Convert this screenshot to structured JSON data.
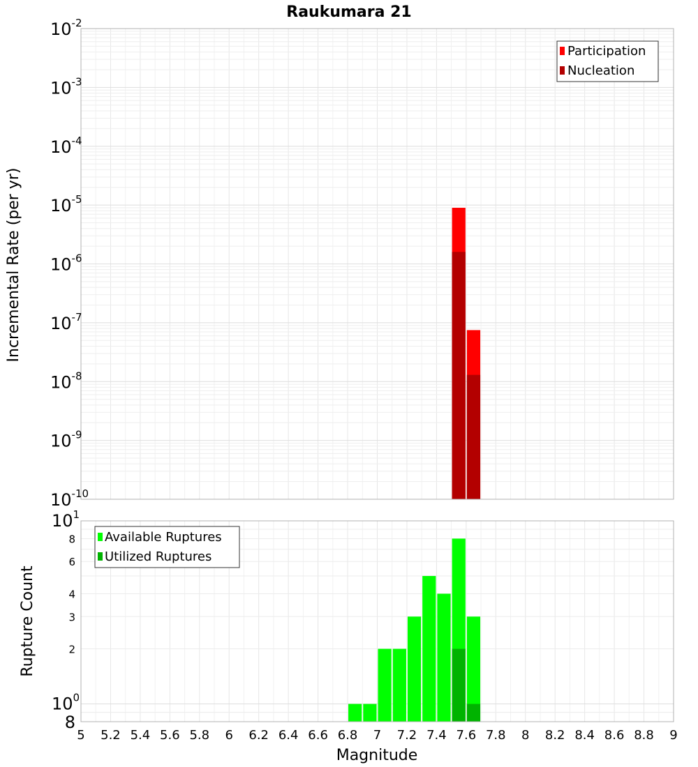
{
  "chart_data": [
    {
      "type": "bar",
      "title": "Raukumara 21",
      "ylabel": "Incremental Rate (per yr)",
      "xlim": [
        5,
        9
      ],
      "ylim": [
        1e-10,
        0.01
      ],
      "y_scale": "log",
      "bin_width": 0.1,
      "grid": true,
      "legend_position": "top-right",
      "series": [
        {
          "name": "Participation",
          "color": "#ff0000",
          "x": [
            7.55,
            7.65
          ],
          "values": [
            9e-06,
            7.5e-08
          ]
        },
        {
          "name": "Nucleation",
          "color": "#b30000",
          "x": [
            7.55,
            7.65
          ],
          "values": [
            1.6e-06,
            1.3e-08
          ]
        }
      ],
      "y_ticks": [
        {
          "value": 0.01,
          "base": "10",
          "exp": "-2"
        },
        {
          "value": 0.001,
          "base": "10",
          "exp": "-3"
        },
        {
          "value": 0.0001,
          "base": "10",
          "exp": "-4"
        },
        {
          "value": 1e-05,
          "base": "10",
          "exp": "-5"
        },
        {
          "value": 1e-06,
          "base": "10",
          "exp": "-6"
        },
        {
          "value": 1e-07,
          "base": "10",
          "exp": "-7"
        },
        {
          "value": 1e-08,
          "base": "10",
          "exp": "-8"
        },
        {
          "value": 1e-09,
          "base": "10",
          "exp": "-9"
        },
        {
          "value": 1e-10,
          "base": "10",
          "exp": "-10"
        }
      ]
    },
    {
      "type": "bar",
      "xlabel": "Magnitude",
      "ylabel": "Rupture Count",
      "xlim": [
        5,
        9
      ],
      "ylim": [
        0.8,
        10
      ],
      "y_scale": "log",
      "bin_width": 0.1,
      "grid": true,
      "legend_position": "top-left",
      "series": [
        {
          "name": "Available Ruptures",
          "color": "#00ff00",
          "x": [
            6.85,
            6.95,
            7.05,
            7.15,
            7.25,
            7.35,
            7.45,
            7.55,
            7.65
          ],
          "values": [
            1,
            1,
            2,
            2,
            3,
            5,
            4,
            8,
            3
          ]
        },
        {
          "name": "Utilized Ruptures",
          "color": "#00b300",
          "x": [
            7.55,
            7.65
          ],
          "values": [
            2,
            1
          ]
        }
      ],
      "y_major_ticks": [
        {
          "value": 10,
          "base": "10",
          "exp": "1"
        },
        {
          "value": 1,
          "base": "10",
          "exp": "0"
        }
      ],
      "y_minor_ticks": [
        {
          "value": 8,
          "label": "8"
        },
        {
          "value": 6,
          "label": "6"
        },
        {
          "value": 4,
          "label": "4"
        },
        {
          "value": 3,
          "label": "3"
        },
        {
          "value": 2,
          "label": "2"
        },
        {
          "value": 0.8,
          "label": "8"
        }
      ],
      "x_ticks": [
        {
          "value": 5,
          "label": "5"
        },
        {
          "value": 5.2,
          "label": "5.2"
        },
        {
          "value": 5.4,
          "label": "5.4"
        },
        {
          "value": 5.6,
          "label": "5.6"
        },
        {
          "value": 5.8,
          "label": "5.8"
        },
        {
          "value": 6,
          "label": "6"
        },
        {
          "value": 6.2,
          "label": "6.2"
        },
        {
          "value": 6.4,
          "label": "6.4"
        },
        {
          "value": 6.6,
          "label": "6.6"
        },
        {
          "value": 6.8,
          "label": "6.8"
        },
        {
          "value": 7,
          "label": "7"
        },
        {
          "value": 7.2,
          "label": "7.2"
        },
        {
          "value": 7.4,
          "label": "7.4"
        },
        {
          "value": 7.6,
          "label": "7.6"
        },
        {
          "value": 7.8,
          "label": "7.8"
        },
        {
          "value": 8,
          "label": "8"
        },
        {
          "value": 8.2,
          "label": "8.2"
        },
        {
          "value": 8.4,
          "label": "8.4"
        },
        {
          "value": 8.6,
          "label": "8.6"
        },
        {
          "value": 8.8,
          "label": "8.8"
        },
        {
          "value": 9,
          "label": "9"
        }
      ]
    }
  ]
}
